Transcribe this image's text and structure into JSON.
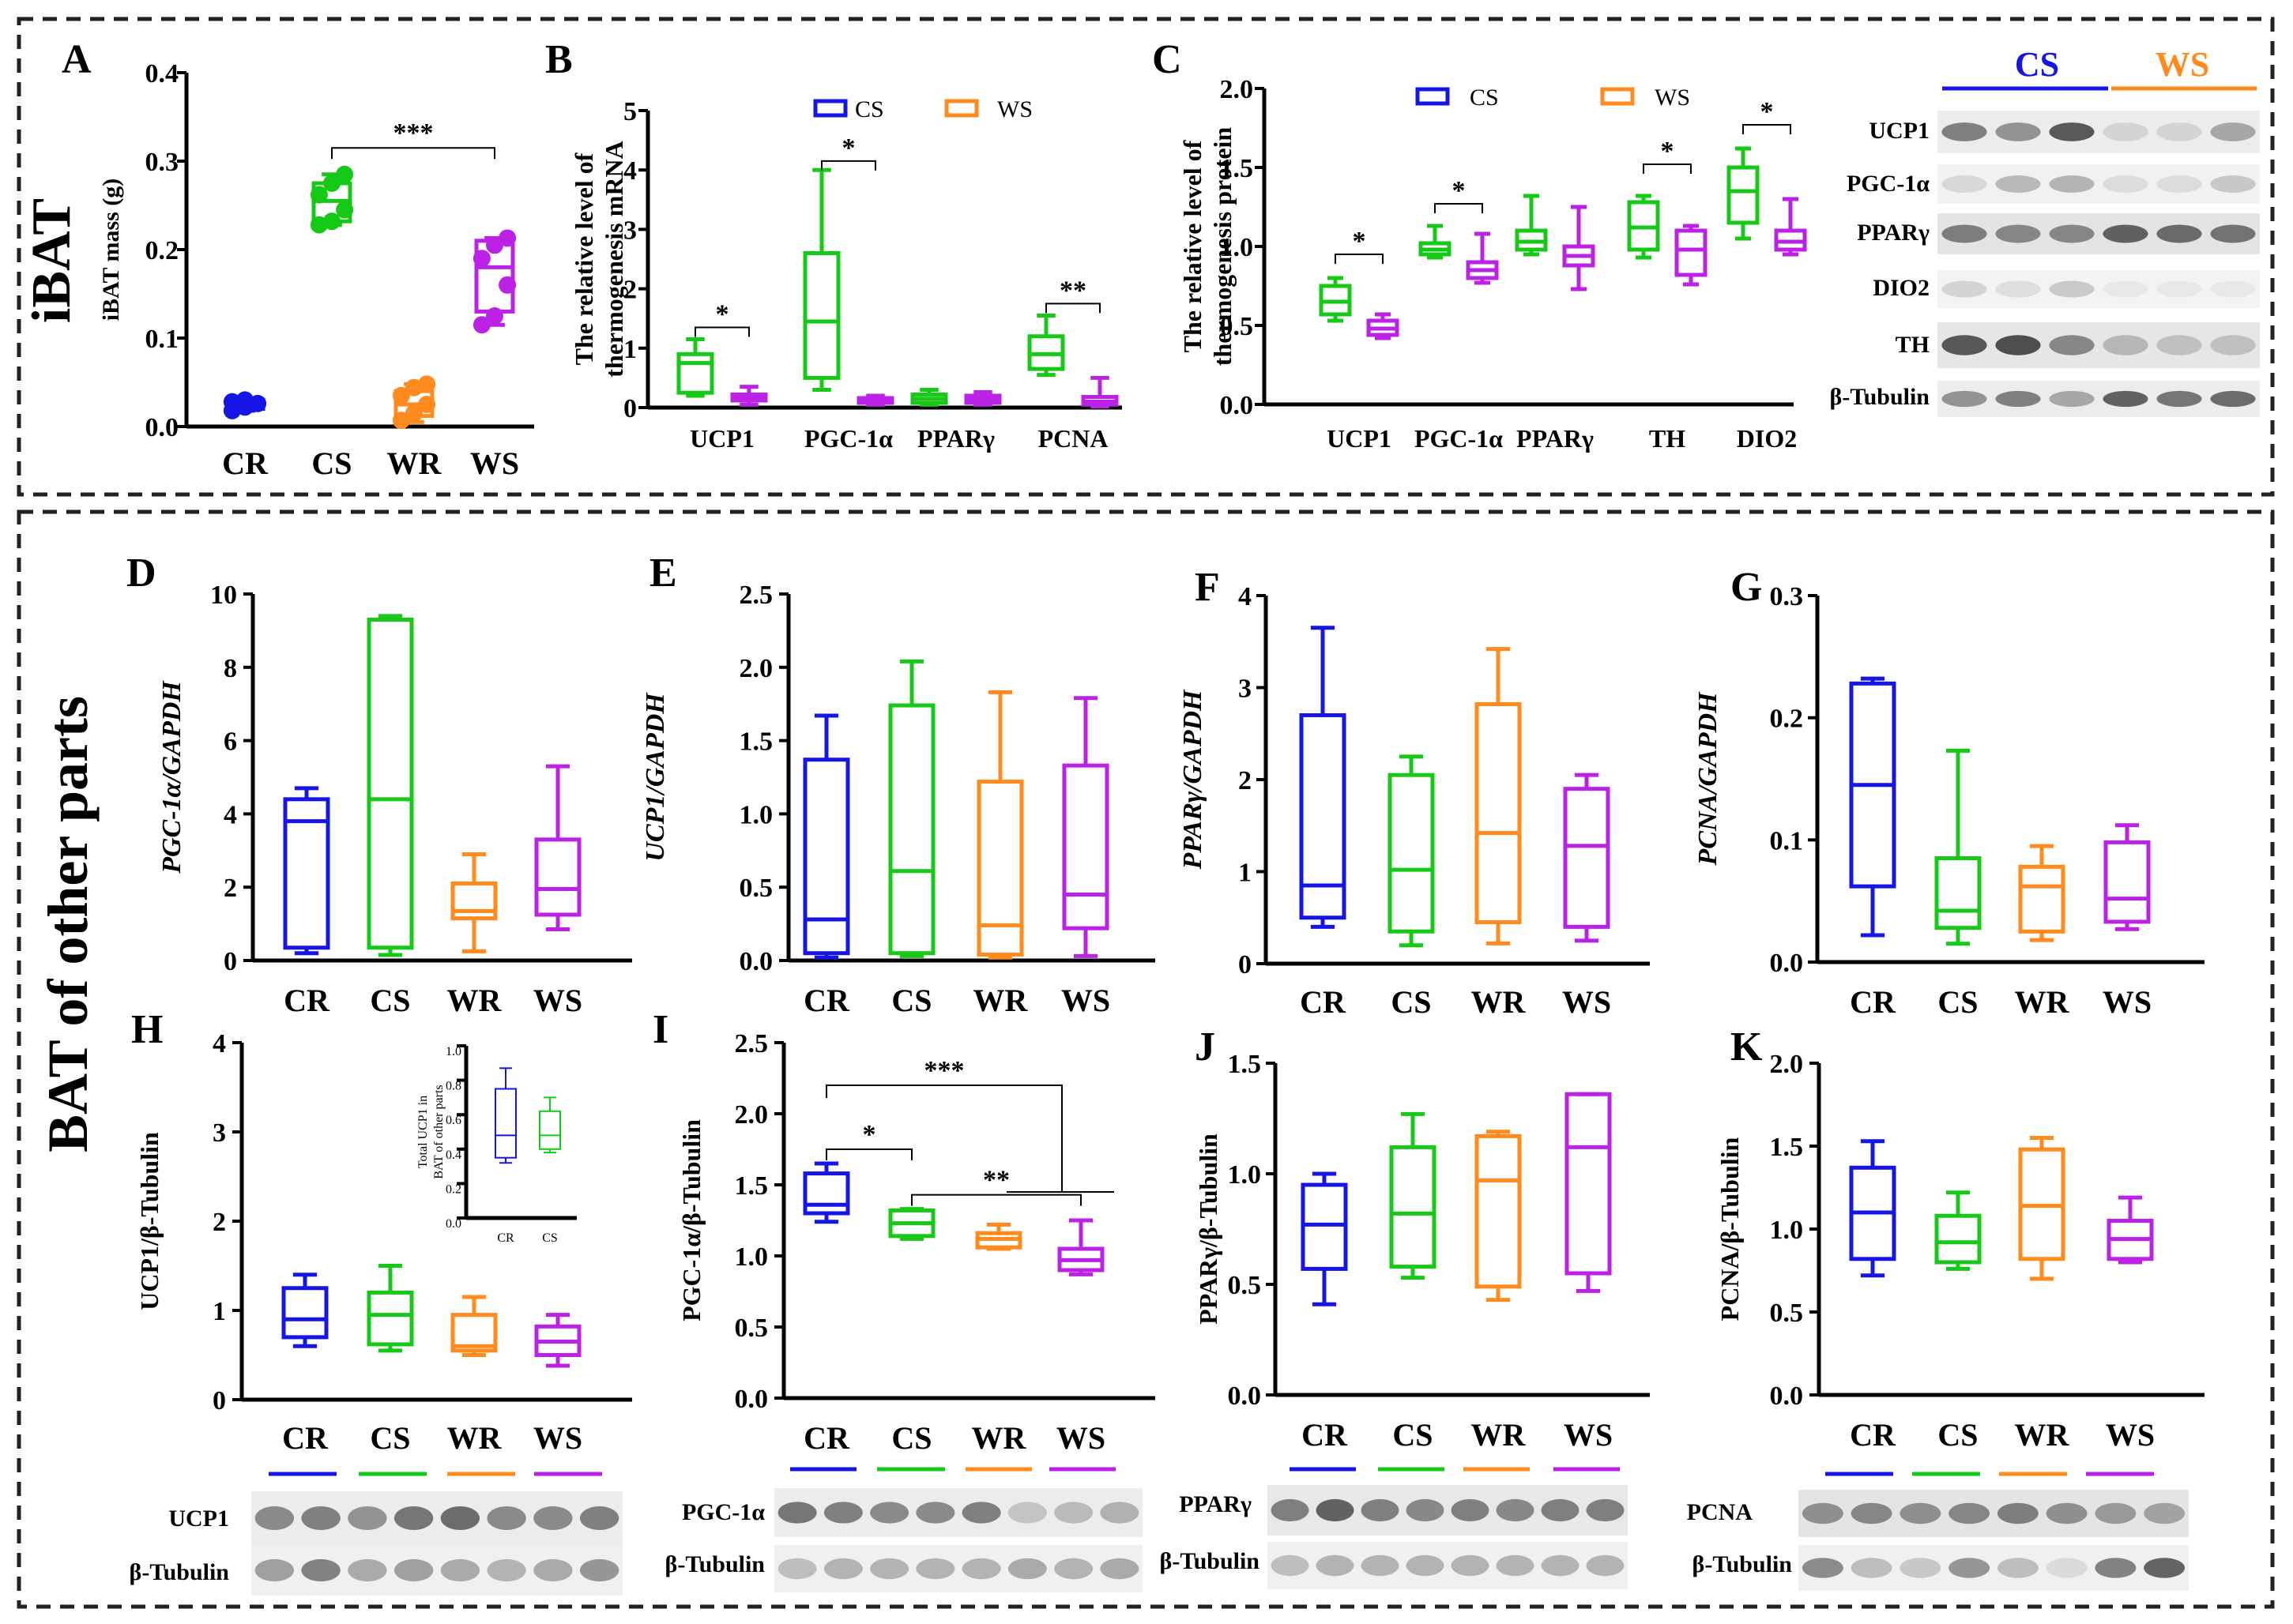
{
  "figure": {
    "section_top_label": "iBAT",
    "section_bottom_label": "BAT of  other parts"
  },
  "colors": {
    "CR": "#1515e6",
    "CS": "#16c916",
    "WR": "#ff8a1e",
    "WS": "#bb22e6",
    "frame": "#222222"
  },
  "legend": {
    "cs": "CS",
    "ws": "WS"
  },
  "western_blots": {
    "C": {
      "headers": [
        "CS",
        "WS"
      ],
      "rows": [
        "UCP1",
        "PGC-1α",
        "PPARγ",
        "DIO2",
        "TH",
        "β-Tubulin"
      ]
    },
    "H": {
      "rows": [
        "UCP1",
        "β-Tubulin"
      ]
    },
    "I": {
      "rows": [
        "PGC-1α",
        "β-Tubulin"
      ]
    },
    "J": {
      "rows": [
        "PPARγ",
        "β-Tubulin"
      ]
    },
    "K": {
      "rows": [
        "PCNA",
        "β-Tubulin"
      ]
    }
  },
  "chart_data": [
    {
      "panel": "A",
      "type": "box",
      "ylabel": "iBAT mass (g)",
      "ylim": [
        0,
        0.4
      ],
      "yticks": [
        "0.0",
        "0.1",
        "0.2",
        "0.3",
        "0.4"
      ],
      "categories": [
        "CR",
        "CS",
        "WR",
        "WS"
      ],
      "boxes": [
        {
          "group": "CR",
          "min": 0.018,
          "q1": 0.02,
          "median": 0.027,
          "q3": 0.03,
          "max": 0.031,
          "points": [
            0.018,
            0.022,
            0.026,
            0.028,
            0.03
          ]
        },
        {
          "group": "CS",
          "min": 0.228,
          "q1": 0.232,
          "median": 0.255,
          "q3": 0.275,
          "max": 0.285,
          "points": [
            0.228,
            0.232,
            0.245,
            0.262,
            0.275,
            0.285
          ]
        },
        {
          "group": "WR",
          "min": 0.005,
          "q1": 0.012,
          "median": 0.025,
          "q3": 0.04,
          "max": 0.048,
          "points": [
            0.007,
            0.015,
            0.025,
            0.035,
            0.044,
            0.048
          ]
        },
        {
          "group": "WS",
          "min": 0.115,
          "q1": 0.13,
          "median": 0.18,
          "q3": 0.21,
          "max": 0.213,
          "points": [
            0.115,
            0.125,
            0.16,
            0.19,
            0.205,
            0.213
          ]
        }
      ],
      "brackets": [
        {
          "from": 1,
          "to": 3,
          "y": 0.315,
          "label": "***"
        }
      ]
    },
    {
      "panel": "B",
      "type": "box",
      "ylabel": "The relative level of thermogenesis mRNA",
      "ylabel_lines": [
        "The relative level of",
        "thermogenesis mRNA"
      ],
      "ylim": [
        0,
        5
      ],
      "yticks": [
        "0",
        "1",
        "2",
        "3",
        "4",
        "5"
      ],
      "categories": [
        "UCP1",
        "PGC-1α",
        "PPARγ",
        "PCNA"
      ],
      "boxes": [
        {
          "group": "CS",
          "cat": 0,
          "min": 0.2,
          "q1": 0.25,
          "median": 0.75,
          "q3": 0.9,
          "max": 1.15
        },
        {
          "group": "WS",
          "cat": 0,
          "min": 0.05,
          "q1": 0.12,
          "median": 0.17,
          "q3": 0.22,
          "max": 0.35
        },
        {
          "group": "CS",
          "cat": 1,
          "min": 0.3,
          "q1": 0.5,
          "median": 1.45,
          "q3": 2.6,
          "max": 4.0
        },
        {
          "group": "WS",
          "cat": 1,
          "min": 0.05,
          "q1": 0.08,
          "median": 0.12,
          "q3": 0.16,
          "max": 0.2
        },
        {
          "group": "CS",
          "cat": 2,
          "min": 0.05,
          "q1": 0.08,
          "median": 0.15,
          "q3": 0.22,
          "max": 0.3
        },
        {
          "group": "WS",
          "cat": 2,
          "min": 0.05,
          "q1": 0.08,
          "median": 0.14,
          "q3": 0.2,
          "max": 0.26
        },
        {
          "group": "CS",
          "cat": 3,
          "min": 0.55,
          "q1": 0.65,
          "median": 0.9,
          "q3": 1.2,
          "max": 1.55
        },
        {
          "group": "WS",
          "cat": 3,
          "min": 0.02,
          "q1": 0.05,
          "median": 0.1,
          "q3": 0.18,
          "max": 0.5
        }
      ],
      "brackets": [
        {
          "cat": 0,
          "y": 1.35,
          "label": "*"
        },
        {
          "cat": 1,
          "y": 4.15,
          "label": "*"
        },
        {
          "cat": 3,
          "y": 1.75,
          "label": "**"
        }
      ]
    },
    {
      "panel": "C",
      "type": "box",
      "ylabel": "The relative level of thermogenesis protein",
      "ylabel_lines": [
        "The relative level of",
        "thermogenesis protein"
      ],
      "ylim": [
        0,
        2.0
      ],
      "yticks": [
        "0.0",
        "0.5",
        "1.0",
        "1.5",
        "2.0"
      ],
      "categories": [
        "UCP1",
        "PGC-1α",
        "PPARγ",
        "TH",
        "DIO2"
      ],
      "boxes": [
        {
          "group": "CS",
          "cat": 0,
          "min": 0.53,
          "q1": 0.57,
          "median": 0.65,
          "q3": 0.75,
          "max": 0.8
        },
        {
          "group": "WS",
          "cat": 0,
          "min": 0.42,
          "q1": 0.44,
          "median": 0.48,
          "q3": 0.53,
          "max": 0.57
        },
        {
          "group": "CS",
          "cat": 1,
          "min": 0.93,
          "q1": 0.95,
          "median": 0.98,
          "q3": 1.02,
          "max": 1.13
        },
        {
          "group": "WS",
          "cat": 1,
          "min": 0.77,
          "q1": 0.8,
          "median": 0.85,
          "q3": 0.9,
          "max": 1.08
        },
        {
          "group": "CS",
          "cat": 2,
          "min": 0.95,
          "q1": 0.98,
          "median": 1.03,
          "q3": 1.1,
          "max": 1.32
        },
        {
          "group": "WS",
          "cat": 2,
          "min": 0.73,
          "q1": 0.88,
          "median": 0.94,
          "q3": 1.0,
          "max": 1.25
        },
        {
          "group": "CS",
          "cat": 3,
          "min": 0.93,
          "q1": 0.98,
          "median": 1.12,
          "q3": 1.28,
          "max": 1.32
        },
        {
          "group": "WS",
          "cat": 3,
          "min": 0.76,
          "q1": 0.82,
          "median": 0.98,
          "q3": 1.1,
          "max": 1.13
        },
        {
          "group": "CS",
          "cat": 4,
          "min": 1.05,
          "q1": 1.15,
          "median": 1.35,
          "q3": 1.5,
          "max": 1.62
        },
        {
          "group": "WS",
          "cat": 4,
          "min": 0.95,
          "q1": 0.98,
          "median": 1.03,
          "q3": 1.1,
          "max": 1.3
        }
      ],
      "brackets": [
        {
          "cat": 0,
          "y": 0.95,
          "label": "*"
        },
        {
          "cat": 1,
          "y": 1.27,
          "label": "*"
        },
        {
          "cat": 3,
          "y": 1.52,
          "label": "*"
        },
        {
          "cat": 4,
          "y": 1.77,
          "label": "*"
        }
      ]
    },
    {
      "panel": "D",
      "type": "box",
      "ylabel": "PGC-1α/GAPDH",
      "italic": true,
      "ylim": [
        0,
        10
      ],
      "yticks": [
        "0",
        "2",
        "4",
        "6",
        "8",
        "10"
      ],
      "categories": [
        "CR",
        "CS",
        "WR",
        "WS"
      ],
      "boxes": [
        {
          "group": "CR",
          "min": 0.2,
          "q1": 0.35,
          "median": 3.8,
          "q3": 4.4,
          "max": 4.7
        },
        {
          "group": "CS",
          "min": 0.15,
          "q1": 0.35,
          "median": 4.4,
          "q3": 9.3,
          "max": 9.4
        },
        {
          "group": "WR",
          "min": 0.25,
          "q1": 1.15,
          "median": 1.35,
          "q3": 2.1,
          "max": 2.9
        },
        {
          "group": "WS",
          "min": 0.85,
          "q1": 1.25,
          "median": 1.95,
          "q3": 3.3,
          "max": 5.3
        }
      ]
    },
    {
      "panel": "E",
      "type": "box",
      "ylabel": "UCP1/GAPDH",
      "italic": true,
      "ylim": [
        0,
        2.5
      ],
      "yticks": [
        "0.0",
        "0.5",
        "1.0",
        "1.5",
        "2.0",
        "2.5"
      ],
      "categories": [
        "CR",
        "CS",
        "WR",
        "WS"
      ],
      "boxes": [
        {
          "group": "CR",
          "min": 0.02,
          "q1": 0.05,
          "median": 0.28,
          "q3": 1.37,
          "max": 1.67
        },
        {
          "group": "CS",
          "min": 0.03,
          "q1": 0.05,
          "median": 0.61,
          "q3": 1.74,
          "max": 2.04
        },
        {
          "group": "WR",
          "min": 0.02,
          "q1": 0.04,
          "median": 0.24,
          "q3": 1.22,
          "max": 1.83
        },
        {
          "group": "WS",
          "min": 0.03,
          "q1": 0.22,
          "median": 0.45,
          "q3": 1.33,
          "max": 1.79
        }
      ]
    },
    {
      "panel": "F",
      "type": "box",
      "ylabel": "PPARγ/GAPDH",
      "italic": true,
      "ylim": [
        0,
        4
      ],
      "yticks": [
        "0",
        "1",
        "2",
        "3",
        "4"
      ],
      "categories": [
        "CR",
        "CS",
        "WR",
        "WS"
      ],
      "boxes": [
        {
          "group": "CR",
          "min": 0.4,
          "q1": 0.5,
          "median": 0.85,
          "q3": 2.7,
          "max": 3.65
        },
        {
          "group": "CS",
          "min": 0.2,
          "q1": 0.35,
          "median": 1.02,
          "q3": 2.05,
          "max": 2.25
        },
        {
          "group": "WR",
          "min": 0.22,
          "q1": 0.45,
          "median": 1.42,
          "q3": 2.82,
          "max": 3.42
        },
        {
          "group": "WS",
          "min": 0.25,
          "q1": 0.4,
          "median": 1.28,
          "q3": 1.9,
          "max": 2.05
        }
      ]
    },
    {
      "panel": "G",
      "type": "box",
      "ylabel": "PCNA/GAPDH",
      "italic": true,
      "ylim": [
        0,
        0.3
      ],
      "yticks": [
        "0.0",
        "0.1",
        "0.2",
        "0.3"
      ],
      "categories": [
        "CR",
        "CS",
        "WR",
        "WS"
      ],
      "boxes": [
        {
          "group": "CR",
          "min": 0.022,
          "q1": 0.062,
          "median": 0.145,
          "q3": 0.228,
          "max": 0.232
        },
        {
          "group": "CS",
          "min": 0.015,
          "q1": 0.028,
          "median": 0.042,
          "q3": 0.085,
          "max": 0.173
        },
        {
          "group": "WR",
          "min": 0.018,
          "q1": 0.025,
          "median": 0.062,
          "q3": 0.078,
          "max": 0.095
        },
        {
          "group": "WS",
          "min": 0.027,
          "q1": 0.033,
          "median": 0.052,
          "q3": 0.098,
          "max": 0.112
        }
      ]
    },
    {
      "panel": "H",
      "type": "box",
      "ylabel": "UCP1/β-Tubulin",
      "ylim": [
        0,
        4
      ],
      "yticks": [
        "0",
        "1",
        "2",
        "3",
        "4"
      ],
      "categories": [
        "CR",
        "CS",
        "WR",
        "WS"
      ],
      "boxes": [
        {
          "group": "CR",
          "min": 0.6,
          "q1": 0.7,
          "median": 0.9,
          "q3": 1.25,
          "max": 1.4
        },
        {
          "group": "CS",
          "min": 0.55,
          "q1": 0.62,
          "median": 0.95,
          "q3": 1.2,
          "max": 1.5
        },
        {
          "group": "WR",
          "min": 0.5,
          "q1": 0.55,
          "median": 0.6,
          "q3": 0.95,
          "max": 1.15
        },
        {
          "group": "WS",
          "min": 0.38,
          "q1": 0.5,
          "median": 0.65,
          "q3": 0.82,
          "max": 0.95
        }
      ],
      "inset": {
        "ylabel_lines": [
          "Total UCP1 in",
          "BAT of other parts"
        ],
        "ylim": [
          0,
          1.0
        ],
        "yticks": [
          "0.0",
          "0.2",
          "0.4",
          "0.6",
          "0.8",
          "1.0"
        ],
        "categories": [
          "CR",
          "CS"
        ],
        "boxes": [
          {
            "group": "CR",
            "min": 0.32,
            "q1": 0.35,
            "median": 0.48,
            "q3": 0.75,
            "max": 0.87
          },
          {
            "group": "CS",
            "min": 0.38,
            "q1": 0.4,
            "median": 0.48,
            "q3": 0.62,
            "max": 0.7
          }
        ]
      }
    },
    {
      "panel": "I",
      "type": "box",
      "ylabel": "PGC-1α/β-Tubulin",
      "ylim": [
        0,
        2.5
      ],
      "yticks": [
        "0.0",
        "0.5",
        "1.0",
        "1.5",
        "2.0",
        "2.5"
      ],
      "categories": [
        "CR",
        "CS",
        "WR",
        "WS"
      ],
      "boxes": [
        {
          "group": "CR",
          "min": 1.24,
          "q1": 1.3,
          "median": 1.36,
          "q3": 1.58,
          "max": 1.65
        },
        {
          "group": "CS",
          "min": 1.12,
          "q1": 1.14,
          "median": 1.23,
          "q3": 1.32,
          "max": 1.33
        },
        {
          "group": "WR",
          "min": 1.05,
          "q1": 1.06,
          "median": 1.12,
          "q3": 1.16,
          "max": 1.22
        },
        {
          "group": "WS",
          "min": 0.87,
          "q1": 0.9,
          "median": 0.97,
          "q3": 1.05,
          "max": 1.25
        }
      ],
      "brackets": [
        {
          "from": 0,
          "to": 1,
          "y": 1.75,
          "label": "*"
        },
        {
          "from": 1,
          "to": 3,
          "y": 1.43,
          "label": "**"
        },
        {
          "type": "nested",
          "from": 0,
          "y": 2.2,
          "label": "***"
        }
      ]
    },
    {
      "panel": "J",
      "type": "box",
      "ylabel": "PPARγ/β-Tubulin",
      "ylim": [
        0,
        1.5
      ],
      "yticks": [
        "0.0",
        "0.5",
        "1.0",
        "1.5"
      ],
      "categories": [
        "CR",
        "CS",
        "WR",
        "WS"
      ],
      "boxes": [
        {
          "group": "CR",
          "min": 0.41,
          "q1": 0.57,
          "median": 0.77,
          "q3": 0.95,
          "max": 1.0
        },
        {
          "group": "CS",
          "min": 0.53,
          "q1": 0.58,
          "median": 0.82,
          "q3": 1.12,
          "max": 1.27
        },
        {
          "group": "WR",
          "min": 0.43,
          "q1": 0.49,
          "median": 0.97,
          "q3": 1.17,
          "max": 1.19
        },
        {
          "group": "WS",
          "min": 0.47,
          "q1": 0.55,
          "median": 1.12,
          "q3": 1.36,
          "max": 1.36
        }
      ]
    },
    {
      "panel": "K",
      "type": "box",
      "ylabel": "PCNA/β-Tubulin",
      "ylim": [
        0,
        2.0
      ],
      "yticks": [
        "0.0",
        "0.5",
        "1.0",
        "1.5",
        "2.0"
      ],
      "categories": [
        "CR",
        "CS",
        "WR",
        "WS"
      ],
      "boxes": [
        {
          "group": "CR",
          "min": 0.72,
          "q1": 0.82,
          "median": 1.1,
          "q3": 1.37,
          "max": 1.53
        },
        {
          "group": "CS",
          "min": 0.76,
          "q1": 0.8,
          "median": 0.92,
          "q3": 1.08,
          "max": 1.22
        },
        {
          "group": "WR",
          "min": 0.7,
          "q1": 0.82,
          "median": 1.14,
          "q3": 1.48,
          "max": 1.55
        },
        {
          "group": "WS",
          "min": 0.8,
          "q1": 0.82,
          "median": 0.94,
          "q3": 1.05,
          "max": 1.19
        }
      ]
    }
  ]
}
